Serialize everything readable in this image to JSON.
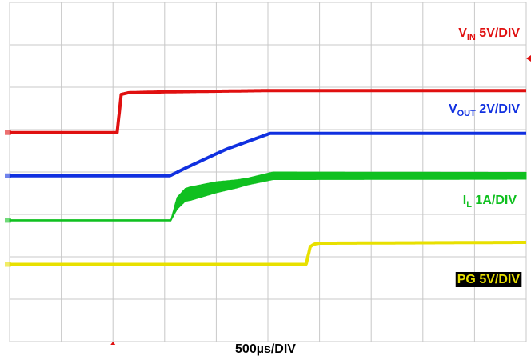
{
  "chart_data": {
    "type": "line",
    "title": "",
    "xlabel": "500µs/DIV",
    "grid": true,
    "x_unit": "µs",
    "x_per_div_us": 500,
    "divisions": {
      "x": 10,
      "y": 8
    },
    "series": [
      {
        "key": "vin",
        "name_main": "V",
        "name_sub": "IN",
        "name_scale": " 5V/DIV",
        "color": "#e01010",
        "offset_div": 4.93,
        "points": [
          [
            0,
            0
          ],
          [
            1040,
            0
          ],
          [
            1080,
            0.9
          ],
          [
            1150,
            0.94
          ],
          [
            1500,
            0.96
          ],
          [
            2500,
            0.99
          ],
          [
            5000,
            0.99
          ]
        ]
      },
      {
        "key": "vout",
        "name_main": "V",
        "name_sub": "OUT",
        "name_scale": " 2V/DIV",
        "color": "#1030e0",
        "offset_div": 3.91,
        "points": [
          [
            0,
            0
          ],
          [
            1550,
            0
          ],
          [
            1700,
            0.18
          ],
          [
            2000,
            0.52
          ],
          [
            2100,
            0.63
          ],
          [
            2520,
            1.0
          ],
          [
            5000,
            1.0
          ]
        ]
      },
      {
        "key": "il",
        "name_main": "I",
        "name_sub": "L",
        "name_scale": " 1A/DIV",
        "color": "#10c020",
        "offset_div": 2.86,
        "envelope": true,
        "points": [
          [
            0,
            0
          ],
          [
            1560,
            0
          ],
          [
            1620,
            0.4
          ],
          [
            1700,
            0.6
          ],
          [
            2000,
            0.78
          ],
          [
            2200,
            0.86
          ],
          [
            2550,
            1.05
          ],
          [
            5000,
            1.05
          ]
        ],
        "spread": [
          [
            0,
            0.03
          ],
          [
            1560,
            0.03
          ],
          [
            1620,
            0.28
          ],
          [
            1750,
            0.32
          ],
          [
            2000,
            0.26
          ],
          [
            2300,
            0.16
          ],
          [
            2550,
            0.18
          ],
          [
            5000,
            0.16
          ]
        ]
      },
      {
        "key": "pg",
        "name_main": "PG 5V/DIV",
        "name_sub": "",
        "name_scale": "",
        "color": "#e8e000",
        "offset_div": 1.82,
        "label_bg": "#000000",
        "points": [
          [
            0,
            0
          ],
          [
            2870,
            0
          ],
          [
            2910,
            0.42
          ],
          [
            2950,
            0.48
          ],
          [
            3000,
            0.5
          ],
          [
            5000,
            0.52
          ]
        ]
      }
    ]
  }
}
